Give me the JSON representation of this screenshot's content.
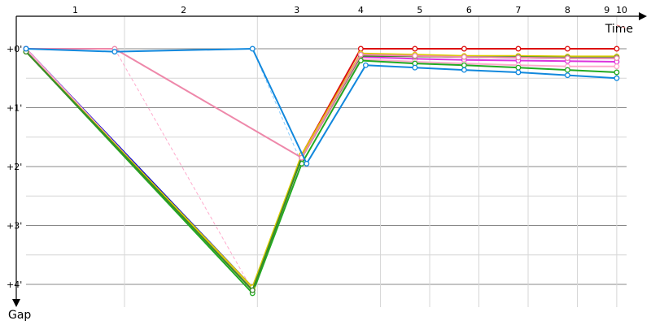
{
  "chart_data": {
    "type": "line",
    "title": "",
    "xlabel": "Time",
    "ylabel": "Gap",
    "x_tick_labels": [
      {
        "label": "1",
        "x": 0.5
      },
      {
        "label": "2",
        "x": 1.6
      },
      {
        "label": "3",
        "x": 2.75
      },
      {
        "label": "4",
        "x": 3.4
      },
      {
        "label": "5",
        "x": 4.0
      },
      {
        "label": "6",
        "x": 4.5
      },
      {
        "label": "7",
        "x": 5.0
      },
      {
        "label": "8",
        "x": 5.5
      },
      {
        "label": "9",
        "x": 5.9
      },
      {
        "label": "10",
        "x": 6.05
      }
    ],
    "y_tick_labels": [
      {
        "label": "+0'",
        "y": 0
      },
      {
        "label": "+1'",
        "y": 1
      },
      {
        "label": "+2'",
        "y": 2
      },
      {
        "label": "+3'",
        "y": 3
      },
      {
        "label": "+4'",
        "y": 4
      }
    ],
    "xlim": [
      0,
      6.1
    ],
    "ylim": [
      0,
      4.3
    ],
    "x_gridlines": [
      1.0,
      2.35,
      3.6,
      4.1,
      4.6,
      5.1,
      5.6,
      6.0
    ],
    "grid": true,
    "series": [
      {
        "color": "#dd1111",
        "x": [
          0,
          2.3,
          2.8,
          3.4,
          3.95,
          4.45,
          5.0,
          5.5,
          6.0
        ],
        "y": [
          0,
          4.1,
          1.8,
          0.0,
          0.0,
          0.0,
          0.0,
          0.0,
          0.0
        ]
      },
      {
        "color": "#0000cc",
        "x": [
          0,
          2.3,
          2.8,
          3.4,
          3.95,
          4.45,
          5.0,
          5.5,
          6.0
        ],
        "y": [
          0,
          4.05,
          1.85,
          0.1,
          0.12,
          0.14,
          0.15,
          0.16,
          0.16
        ]
      },
      {
        "color": "#dd33dd",
        "x": [
          0,
          2.3,
          2.8,
          3.4,
          3.95,
          4.45,
          5.0,
          5.5,
          6.0
        ],
        "y": [
          0,
          4.1,
          1.85,
          0.14,
          0.17,
          0.19,
          0.2,
          0.21,
          0.22
        ]
      },
      {
        "color": "#ffaacc",
        "x": [
          0,
          2.3,
          2.8,
          3.4,
          3.95,
          4.45,
          5.0,
          5.5,
          6.0
        ],
        "y": [
          0,
          4.1,
          1.85,
          0.18,
          0.22,
          0.25,
          0.28,
          0.3,
          0.3
        ]
      },
      {
        "color": "#22aa22",
        "x": [
          0,
          2.3,
          2.8,
          3.4,
          3.95,
          4.45,
          5.0,
          5.5,
          6.0
        ],
        "y": [
          0.05,
          4.15,
          1.95,
          0.2,
          0.25,
          0.28,
          0.32,
          0.36,
          0.4
        ]
      },
      {
        "color": "#ddcc00",
        "x": [
          0,
          2.3,
          2.8,
          3.4,
          3.95,
          4.45,
          5.0,
          5.5,
          6.0
        ],
        "y": [
          0.05,
          4.05,
          1.8,
          0.08,
          0.1,
          0.12,
          0.12,
          0.13,
          0.13
        ]
      },
      {
        "color": "#3a8a2a",
        "x": [
          0,
          2.3,
          2.8,
          3.4,
          3.95,
          4.45,
          5.0,
          5.5,
          6.0
        ],
        "y": [
          0.05,
          4.1,
          1.85,
          0.12,
          0.13,
          0.14,
          0.14,
          0.15,
          0.15
        ]
      },
      {
        "color": "#ee88aa",
        "x": [
          0,
          0.9,
          2.8,
          3.4,
          3.95,
          4.45,
          5.0,
          5.5,
          6.0
        ],
        "y": [
          0,
          0,
          1.85,
          0.1,
          0.12,
          0.14,
          0.15,
          0.16,
          0.16
        ]
      },
      {
        "color": "#1188dd",
        "x": [
          0,
          0.9,
          2.3,
          2.85,
          3.45,
          3.95,
          4.45,
          5.0,
          5.5,
          6.0
        ],
        "y": [
          0,
          0.05,
          0,
          1.95,
          0.28,
          0.32,
          0.36,
          0.4,
          0.45,
          0.5
        ]
      }
    ],
    "dashed_series": [
      {
        "color": "#ffaacc",
        "x": [
          0.9,
          2.3
        ],
        "y": [
          0,
          4.1
        ]
      },
      {
        "color": "#88ccff",
        "x": [
          2.3,
          2.8
        ],
        "y": [
          0,
          1.95
        ]
      },
      {
        "color": "#ee8888",
        "x": [
          6.0,
          6.1
        ],
        "y": [
          -0.4,
          -0.35
        ]
      }
    ]
  }
}
